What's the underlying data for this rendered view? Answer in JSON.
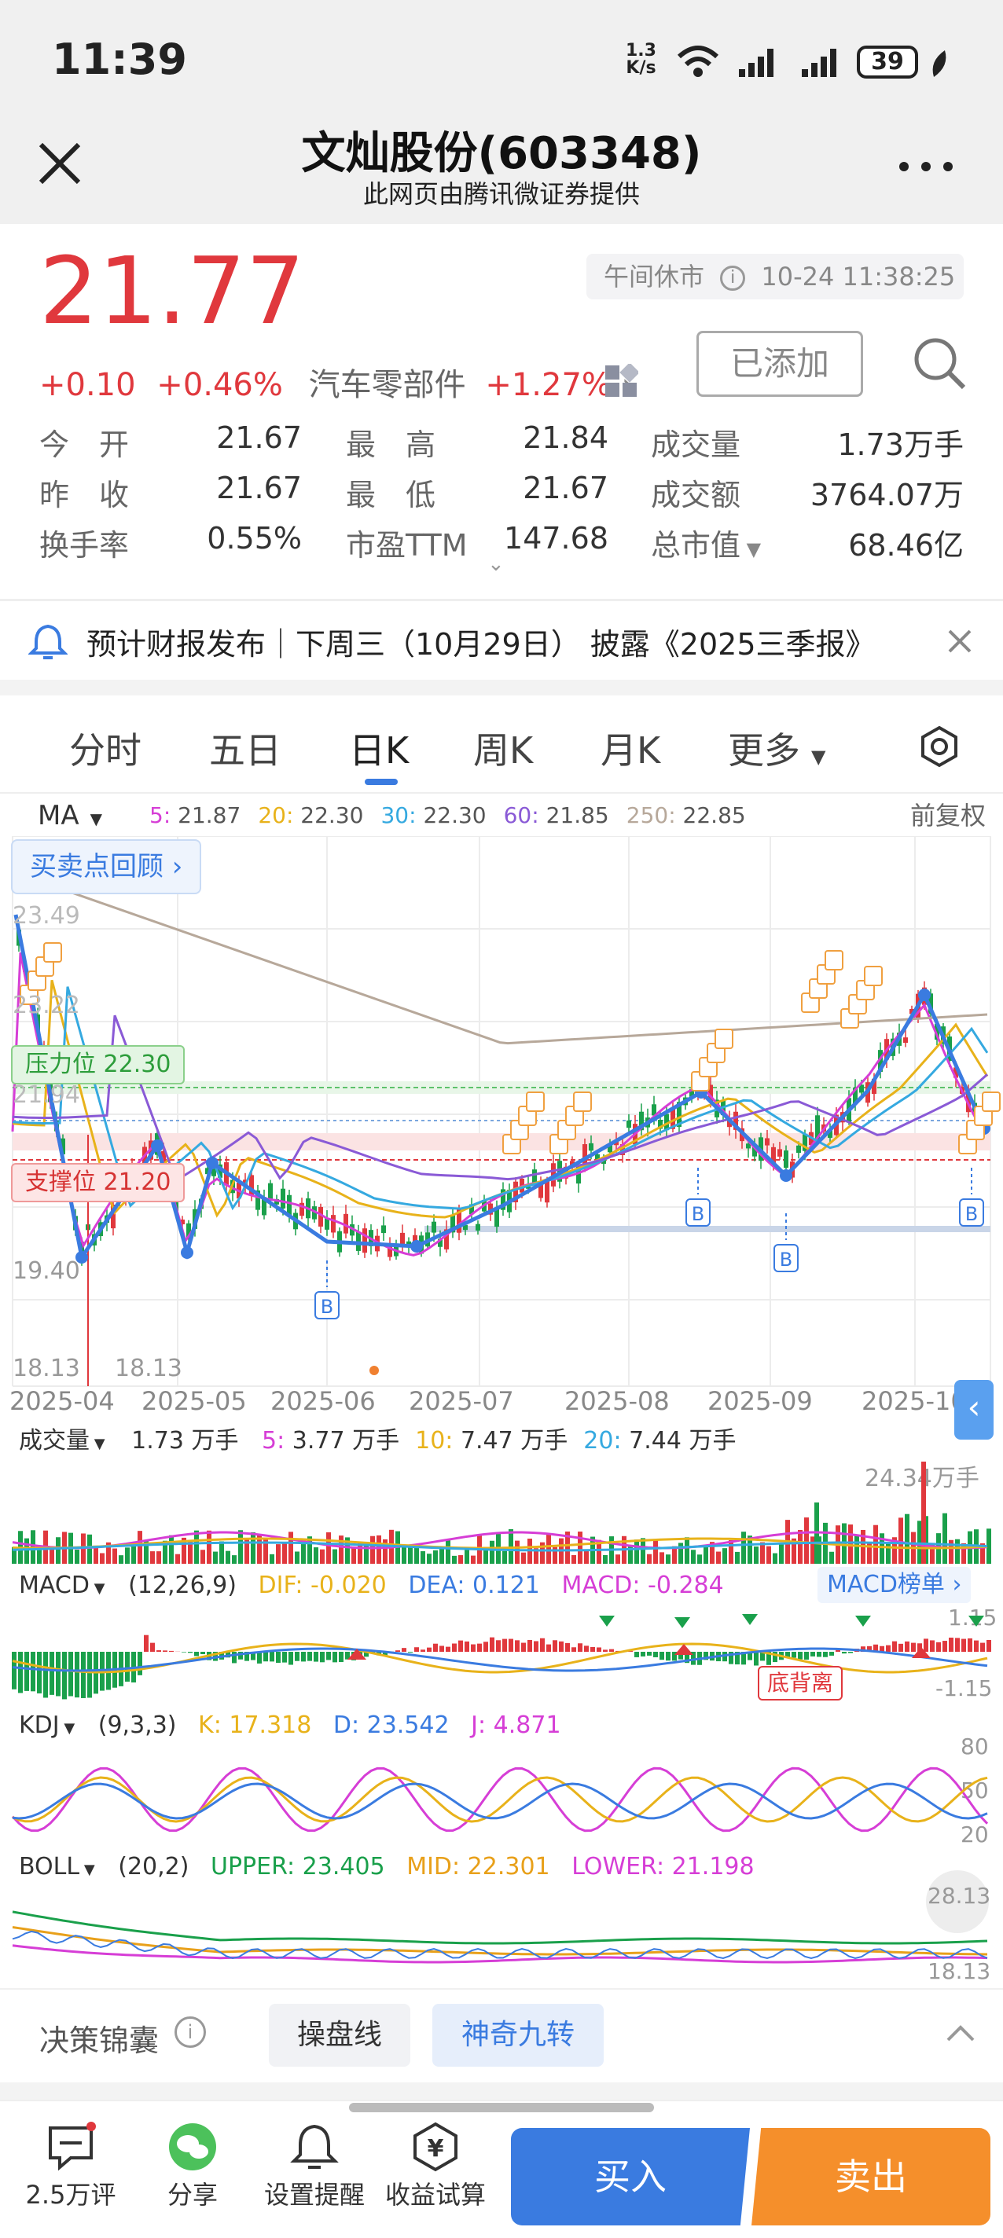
{
  "status": {
    "time": "11:39",
    "net_speed_top": "1.3",
    "net_speed_bottom": "K/s",
    "battery": "39"
  },
  "header": {
    "title": "文灿股份(603348)",
    "subtitle": "此网页由腾讯微证券提供"
  },
  "quote": {
    "price": "21.77",
    "change": "+0.10",
    "change_pct": "+0.46%",
    "sector": "汽车零部件",
    "sector_change": "+1.27%",
    "market_status": "午间休市",
    "timestamp": "10-24 11:38:25",
    "add_button": "已添加",
    "stats": [
      {
        "label": "今　开",
        "value": "21.67"
      },
      {
        "label": "最　高",
        "value": "21.84"
      },
      {
        "label": "成交量",
        "value": "1.73万手"
      },
      {
        "label": "昨　收",
        "value": "21.67"
      },
      {
        "label": "最　低",
        "value": "21.67"
      },
      {
        "label": "成交额",
        "value": "3764.07万"
      },
      {
        "label": "换手率",
        "value": "0.55%"
      },
      {
        "label": "市盈TTM",
        "value": "147.68"
      },
      {
        "label": "总市值",
        "value": "68.46亿"
      }
    ]
  },
  "notice": {
    "text": "预计财报发布｜下周三（10月29日） 披露《2025三季报》"
  },
  "tabs": [
    "分时",
    "五日",
    "日K",
    "周K",
    "月K",
    "更多"
  ],
  "ma_bar": {
    "label": "MA",
    "items": [
      {
        "key": "5:",
        "value": "21.87",
        "color": "#d63ed6"
      },
      {
        "key": "20:",
        "value": "22.30",
        "color": "#e8b21a"
      },
      {
        "key": "30:",
        "value": "22.30",
        "color": "#35a9e0"
      },
      {
        "key": "60:",
        "value": "21.85",
        "color": "#8a5ad6"
      },
      {
        "key": "250:",
        "value": "22.85",
        "color": "#b7a89a"
      }
    ],
    "adjust": "前复权"
  },
  "chart_overlay": {
    "review_button": "买卖点回顾",
    "pressure": "压力位 22.30",
    "support": "支撑位 21.20",
    "y_labels": [
      "23.49",
      "23.22",
      "21.94",
      "19.40",
      "18.13"
    ],
    "low_label": "18.13",
    "buy_marker": "B"
  },
  "chart_data": {
    "type": "line",
    "x_ticks": [
      "2025-04",
      "2025-05",
      "2025-06",
      "2025-07",
      "2025-08",
      "2025-09",
      "2025-10"
    ],
    "ma_values": {
      "MA5": 21.87,
      "MA20": 22.3,
      "MA30": 22.3,
      "MA60": 21.85,
      "MA250": 22.85
    },
    "pressure_level": 22.3,
    "support_level": 21.2,
    "low": 18.13
  },
  "volume_bar": {
    "label": "成交量",
    "value": "1.73 万手",
    "items": [
      {
        "key": "5:",
        "value": "3.77 万手",
        "color": "#d63ed6"
      },
      {
        "key": "10:",
        "value": "7.47 万手",
        "color": "#e8b21a"
      },
      {
        "key": "20:",
        "value": "7.44 万手",
        "color": "#35a9e0"
      }
    ],
    "max_label": "24.34万手"
  },
  "macd_bar": {
    "label": "MACD",
    "params": "(12,26,9)",
    "dif": "DIF: -0.020",
    "dea": "DEA: 0.121",
    "macd": "MACD: -0.284",
    "rank_button": "MACD榜单",
    "top": "1.15",
    "bottom": "-1.15",
    "divergence": "底背离"
  },
  "kdj_bar": {
    "label": "KDJ",
    "params": "(9,3,3)",
    "k": "K: 17.318",
    "d": "D: 23.542",
    "j": "J: 4.871",
    "levels": [
      "80",
      "50",
      "20"
    ]
  },
  "boll_bar": {
    "label": "BOLL",
    "params": "(20,2)",
    "upper": "UPPER: 23.405",
    "mid": "MID: 22.301",
    "lower": "LOWER: 21.198",
    "top": "28.13",
    "bottom": "18.13"
  },
  "decision": {
    "label": "决策锦囊",
    "chips": [
      "操盘线",
      "神奇九转"
    ]
  },
  "bottom_bar": {
    "comments": "2.5万评",
    "share": "分享",
    "alert": "设置提醒",
    "calc": "收益试算",
    "buy": "买入",
    "sell": "卖出"
  }
}
